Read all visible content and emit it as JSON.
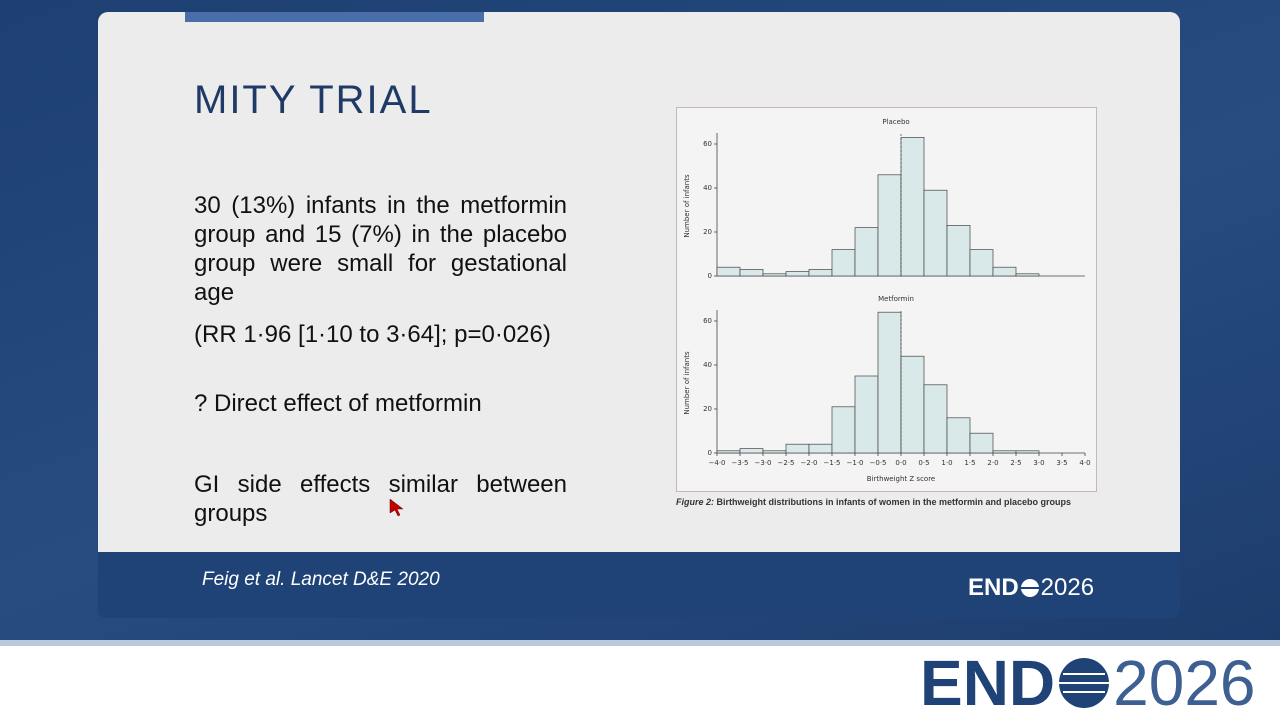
{
  "slide": {
    "title": "MITY TRIAL",
    "paragraphs": [
      "30 (13%) infants in the metformin group and 15 (7%) in the placebo group were small for gestational age",
      "(RR 1·96 [1·10 to 3·64]; p=0·026)",
      "? Direct effect of metformin",
      "GI side effects similar between groups"
    ],
    "citation": "Feig et al. Lancet D&E 2020"
  },
  "logo": {
    "left": "END",
    "right": "2026"
  },
  "figure_caption": {
    "label": "Figure 2:",
    "text": "Birthweight distributions in infants of women in the metformin and placebo groups"
  },
  "chart_data": [
    {
      "type": "histogram",
      "title": "Placebo",
      "ylabel": "Number of infants",
      "color": "#d9e8e8",
      "bins": [
        -4,
        -3.5,
        -3,
        -2.5,
        -2,
        -1.5,
        -1,
        -0.5,
        0,
        0.5,
        1,
        1.5,
        2,
        2.5,
        3,
        3.5,
        4
      ],
      "values": [
        4,
        3,
        1,
        2,
        3,
        12,
        22,
        46,
        63,
        39,
        23,
        12,
        4,
        1,
        0,
        0
      ],
      "xlim": [
        -4,
        4
      ],
      "ylim": [
        0,
        65
      ],
      "yticks": [
        0,
        20,
        40,
        60
      ]
    },
    {
      "type": "histogram",
      "title": "Metformin",
      "ylabel": "Number of infants",
      "xlabel": "Birthweight Z score",
      "color": "#d9e8e8",
      "bins": [
        -4,
        -3.5,
        -3,
        -2.5,
        -2,
        -1.5,
        -1,
        -0.5,
        0,
        0.5,
        1,
        1.5,
        2,
        2.5,
        3,
        3.5,
        4
      ],
      "values": [
        1,
        2,
        1,
        4,
        4,
        21,
        35,
        64,
        44,
        31,
        16,
        9,
        1,
        1,
        0,
        0
      ],
      "xlim": [
        -4,
        4
      ],
      "ylim": [
        0,
        65
      ],
      "yticks": [
        0,
        20,
        40,
        60
      ],
      "xticks": [
        {
          "value": -4,
          "label": "−4·0"
        },
        {
          "value": -3.5,
          "label": "−3·5"
        },
        {
          "value": -3,
          "label": "−3·0"
        },
        {
          "value": -2.5,
          "label": "−2·5"
        },
        {
          "value": -2,
          "label": "−2·0"
        },
        {
          "value": -1.5,
          "label": "−1·5"
        },
        {
          "value": -1,
          "label": "−1·0"
        },
        {
          "value": -0.5,
          "label": "−0·5"
        },
        {
          "value": 0,
          "label": "0·0"
        },
        {
          "value": 0.5,
          "label": "0·5"
        },
        {
          "value": 1,
          "label": "1·0"
        },
        {
          "value": 1.5,
          "label": "1·5"
        },
        {
          "value": 2,
          "label": "2·0"
        },
        {
          "value": 2.5,
          "label": "2·5"
        },
        {
          "value": 3,
          "label": "3·0"
        },
        {
          "value": 3.5,
          "label": "3·5"
        },
        {
          "value": 4,
          "label": "4·0"
        }
      ]
    }
  ]
}
